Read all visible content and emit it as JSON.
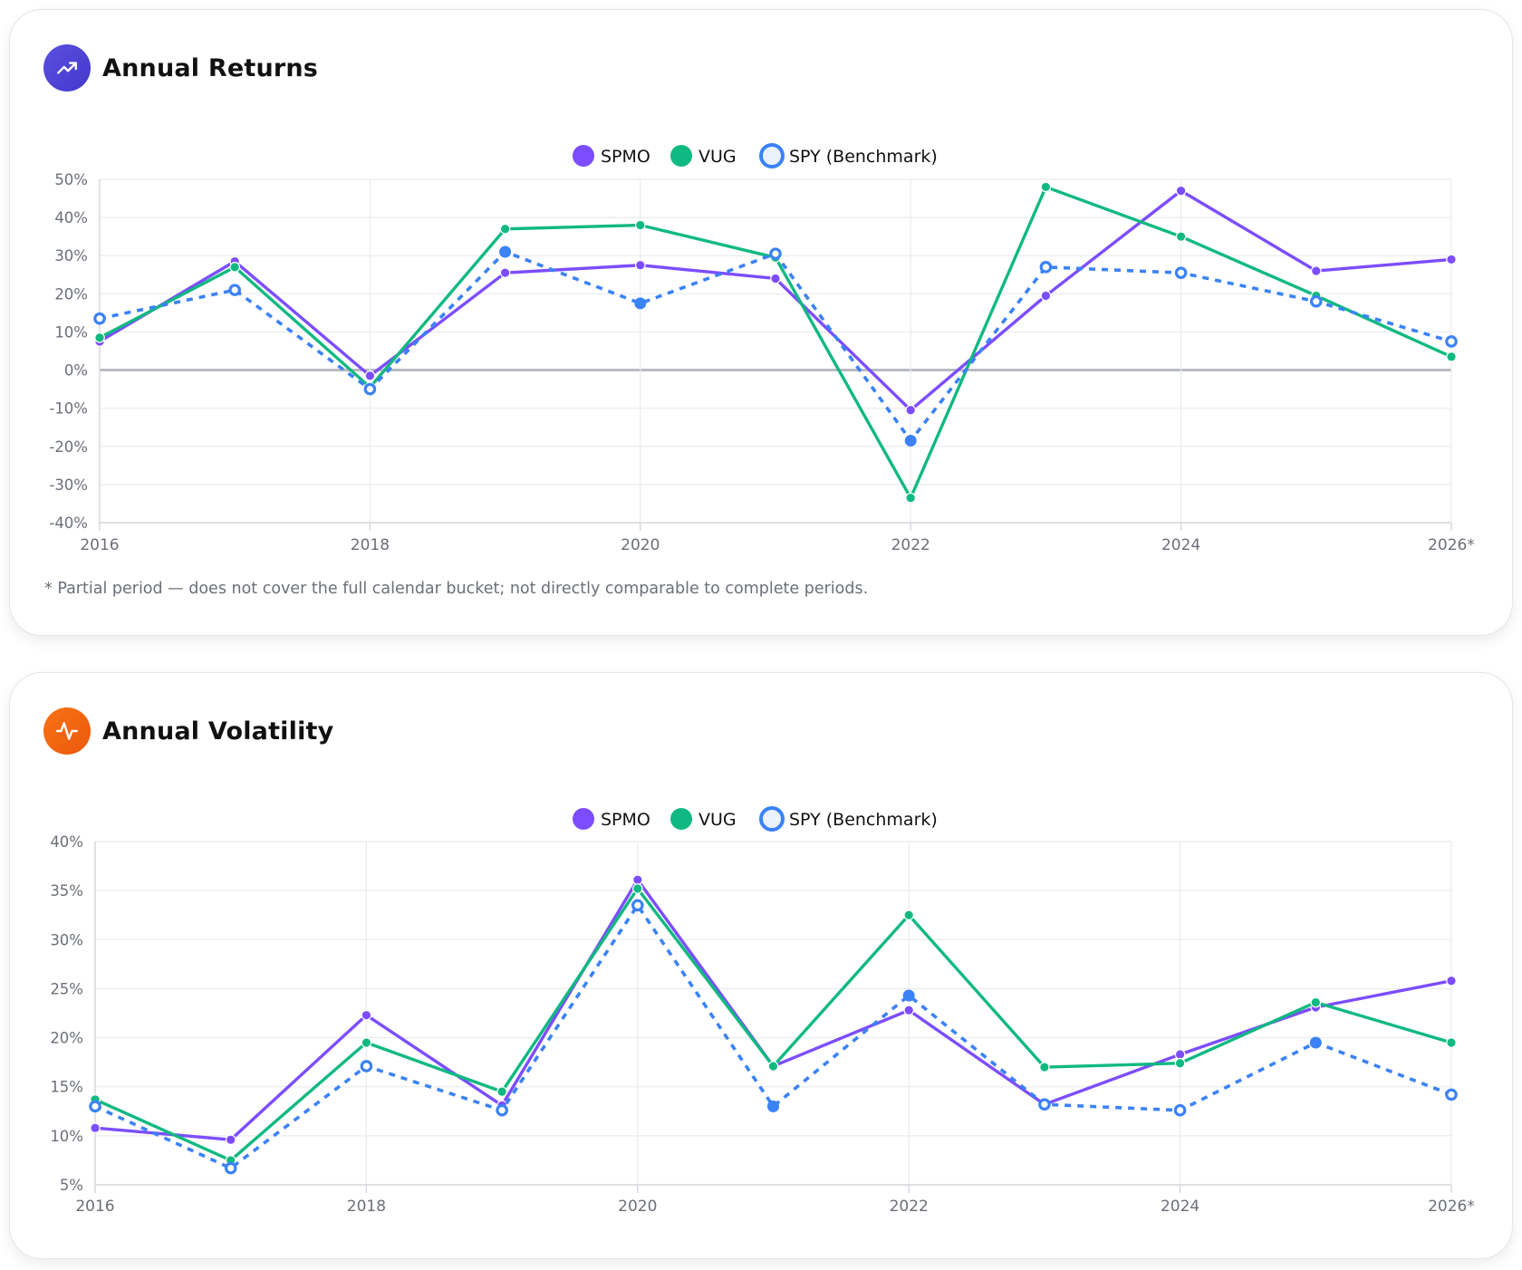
{
  "cards": [
    {
      "title": "Annual Returns",
      "icon": "trending-up-icon",
      "footnote": "* Partial period — does not cover the full calendar bucket; not directly comparable to complete periods."
    },
    {
      "title": "Annual Volatility",
      "icon": "activity-pulse-icon"
    }
  ],
  "colors": {
    "SPMO": "#7c4dff",
    "VUG": "#10b981",
    "SPY": "#3b82f6",
    "grid": "#e9ebef",
    "zero_line": "#b8bbc1",
    "tick": "#6b6f78"
  },
  "chart_data": [
    {
      "type": "line",
      "title": "Annual Returns",
      "legend_position": "top-center",
      "grid": true,
      "x": [
        "2016",
        "2017",
        "2018",
        "2019",
        "2020",
        "2021",
        "2022",
        "2023",
        "2024",
        "2025",
        "2026*"
      ],
      "x_tick_labels": [
        "2016",
        "2018",
        "2020",
        "2022",
        "2024",
        "2026*"
      ],
      "ylim": [
        -40,
        50
      ],
      "y_tick_labels": [
        "50%",
        "40%",
        "30%",
        "20%",
        "10%",
        "0%",
        "-10%",
        "-20%",
        "-30%",
        "-40%"
      ],
      "y_unit": "%",
      "series": [
        {
          "name": "SPMO",
          "values": [
            7.5,
            28.5,
            -1.5,
            25.5,
            27.5,
            24,
            -10.5,
            19.5,
            47,
            26,
            29
          ]
        },
        {
          "name": "VUG",
          "values": [
            8.5,
            27,
            -4.5,
            37,
            38,
            29.5,
            -33.5,
            48,
            35,
            19.5,
            3.5
          ]
        },
        {
          "name": "SPY (Benchmark)",
          "values": [
            13.5,
            21,
            -5,
            31,
            17.5,
            30.5,
            -18.5,
            27,
            25.5,
            18,
            7.5
          ]
        }
      ]
    },
    {
      "type": "line",
      "title": "Annual Volatility",
      "legend_position": "top-center",
      "grid": true,
      "x": [
        "2016",
        "2017",
        "2018",
        "2019",
        "2020",
        "2021",
        "2022",
        "2023",
        "2024",
        "2025",
        "2026*"
      ],
      "x_tick_labels": [
        "2016",
        "2018",
        "2020",
        "2022",
        "2024",
        "2026*"
      ],
      "ylim": [
        5,
        40
      ],
      "y_tick_labels": [
        "40%",
        "35%",
        "30%",
        "25%",
        "20%",
        "15%",
        "10%",
        "5%"
      ],
      "y_unit": "%",
      "series": [
        {
          "name": "SPMO",
          "values": [
            10.8,
            9.6,
            22.3,
            13.1,
            36.1,
            17.1,
            22.8,
            13.2,
            18.3,
            23.1,
            25.8
          ]
        },
        {
          "name": "VUG",
          "values": [
            13.7,
            7.5,
            19.5,
            14.5,
            35.2,
            17.1,
            32.5,
            17.0,
            17.4,
            23.6,
            19.5
          ]
        },
        {
          "name": "SPY (Benchmark)",
          "values": [
            13.0,
            6.7,
            17.1,
            12.6,
            33.5,
            13.0,
            24.3,
            13.2,
            12.6,
            19.5,
            14.2
          ]
        }
      ]
    }
  ]
}
